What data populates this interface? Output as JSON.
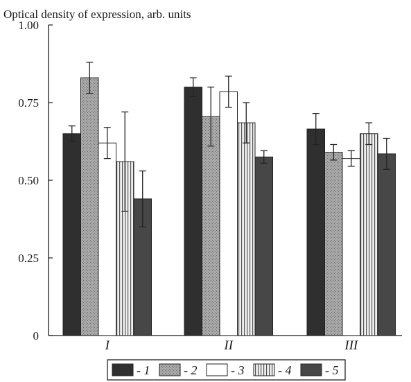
{
  "chart_data": {
    "type": "bar",
    "title": "Optical density of expression, arb. units",
    "categories": [
      "I",
      "II",
      "III"
    ],
    "ylim": [
      0,
      1.0
    ],
    "yticks": [
      "0",
      "0.25",
      "0.50",
      "0.75",
      "1.00"
    ],
    "grid": false,
    "legend_position": "bottom",
    "series": [
      {
        "name": "- 1",
        "values": [
          0.65,
          0.8,
          0.665
        ],
        "errors": [
          0.025,
          0.03,
          0.05
        ],
        "color": "#2f2f2f",
        "pattern": "solid-dark"
      },
      {
        "name": "- 2",
        "values": [
          0.83,
          0.705,
          0.59
        ],
        "errors": [
          0.05,
          0.095,
          0.025
        ],
        "color": "#9a9a9a",
        "pattern": "stipple"
      },
      {
        "name": "- 3",
        "values": [
          0.62,
          0.785,
          0.57
        ],
        "errors": [
          0.05,
          0.05,
          0.025
        ],
        "color": "#ffffff",
        "pattern": "empty"
      },
      {
        "name": "- 4",
        "values": [
          0.56,
          0.685,
          0.65
        ],
        "errors": [
          0.16,
          0.065,
          0.035
        ],
        "color": "#dcdcdc",
        "pattern": "vertical-lines"
      },
      {
        "name": "- 5",
        "values": [
          0.44,
          0.575,
          0.585
        ],
        "errors": [
          0.09,
          0.02,
          0.05
        ],
        "color": "#474747",
        "pattern": "solid-mid"
      }
    ]
  }
}
